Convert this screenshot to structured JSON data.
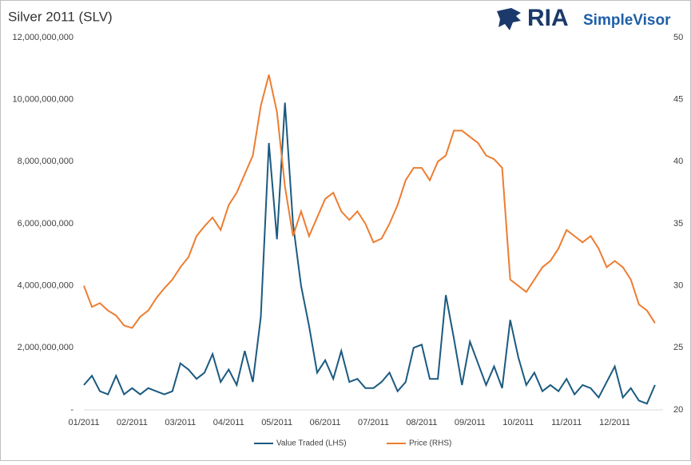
{
  "brand": {
    "name": "RIA",
    "product": "SimpleVisor"
  },
  "chart_data": {
    "type": "line",
    "title": "Silver 2011 (SLV)",
    "categories": [
      "01/2011",
      null,
      null,
      null,
      null,
      null,
      "02/2011",
      null,
      null,
      null,
      null,
      null,
      "03/2011",
      null,
      null,
      null,
      null,
      null,
      "04/2011",
      null,
      null,
      null,
      null,
      null,
      "05/2011",
      null,
      null,
      null,
      null,
      null,
      "06/2011",
      null,
      null,
      null,
      null,
      null,
      "07/2011",
      null,
      null,
      null,
      null,
      null,
      "08/2011",
      null,
      null,
      null,
      null,
      null,
      "09/2011",
      null,
      null,
      null,
      null,
      null,
      "10/2011",
      null,
      null,
      null,
      null,
      null,
      "11/2011",
      null,
      null,
      null,
      null,
      null,
      "12/2011",
      null,
      null,
      null,
      null,
      null
    ],
    "series": [
      {
        "name": "Value Traded (LHS)",
        "color": "#1b5a80",
        "axis": "y",
        "values": [
          800000000,
          1100000000,
          600000000,
          500000000,
          1100000000,
          500000000,
          700000000,
          500000000,
          700000000,
          600000000,
          500000000,
          600000000,
          1500000000,
          1300000000,
          1000000000,
          1200000000,
          1800000000,
          900000000,
          1300000000,
          800000000,
          1900000000,
          900000000,
          3000000000,
          8600000000,
          5500000000,
          9900000000,
          6000000000,
          4000000000,
          2700000000,
          1200000000,
          1600000000,
          1000000000,
          1900000000,
          900000000,
          1000000000,
          700000000,
          700000000,
          900000000,
          1200000000,
          600000000,
          900000000,
          2000000000,
          2100000000,
          1000000000,
          1000000000,
          3700000000,
          2300000000,
          800000000,
          2200000000,
          1500000000,
          800000000,
          1400000000,
          700000000,
          2900000000,
          1700000000,
          800000000,
          1200000000,
          600000000,
          800000000,
          600000000,
          1000000000,
          500000000,
          800000000,
          700000000,
          400000000,
          900000000,
          1400000000,
          400000000,
          700000000,
          300000000,
          200000000,
          800000000
        ]
      },
      {
        "name": "Price (RHS)",
        "color": "#ed7d31",
        "axis": "y2",
        "values": [
          30,
          28.3,
          28.6,
          28,
          27.6,
          26.8,
          26.6,
          27.5,
          28,
          29,
          29.8,
          30.5,
          31.5,
          32.3,
          34,
          34.8,
          35.5,
          34.5,
          36.5,
          37.5,
          39,
          40.5,
          44.5,
          47,
          44,
          38,
          34,
          36,
          34,
          35.5,
          37,
          37.5,
          36,
          35.3,
          36,
          35,
          33.5,
          33.8,
          35,
          36.5,
          38.5,
          39.5,
          39.5,
          38.5,
          40,
          40.5,
          42.5,
          42.5,
          42,
          41.5,
          40.5,
          40.2,
          39.5,
          30.5,
          30,
          29.5,
          30.5,
          31.5,
          32,
          33,
          34.5,
          34,
          33.5,
          34,
          33,
          31.5,
          32,
          31.5,
          30.5,
          28.5,
          28,
          27
        ]
      }
    ],
    "ylim": [
      0,
      12000000000
    ],
    "yticks": [
      {
        "value": 0,
        "label": "-"
      },
      {
        "value": 2000000000,
        "label": "2,000,000,000"
      },
      {
        "value": 4000000000,
        "label": "4,000,000,000"
      },
      {
        "value": 6000000000,
        "label": "6,000,000,000"
      },
      {
        "value": 8000000000,
        "label": "8,000,000,000"
      },
      {
        "value": 10000000000,
        "label": "10,000,000,000"
      },
      {
        "value": 12000000000,
        "label": "12,000,000,000"
      }
    ],
    "y2lim": [
      20,
      50
    ],
    "y2ticks": [
      20,
      25,
      30,
      35,
      40,
      45,
      50
    ],
    "legend": "bottom"
  }
}
